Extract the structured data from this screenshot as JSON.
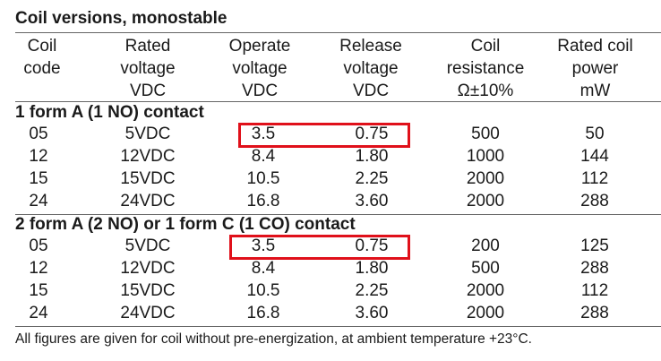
{
  "title": "Coil versions, monostable",
  "headers": [
    [
      "Coil",
      "code"
    ],
    [
      "Rated",
      "voltage",
      "VDC"
    ],
    [
      "Operate",
      "voltage",
      "VDC"
    ],
    [
      "Release",
      "voltage",
      "VDC"
    ],
    [
      "Coil",
      "resistance",
      "Ω±10%"
    ],
    [
      "Rated coil",
      "power",
      "mW"
    ]
  ],
  "sections": [
    {
      "title": "1 form A (1 NO) contact",
      "rows": [
        [
          "05",
          "5VDC",
          "3.5",
          "0.75",
          "500",
          "50"
        ],
        [
          "12",
          "12VDC",
          "8.4",
          "1.80",
          "1000",
          "144"
        ],
        [
          "15",
          "15VDC",
          "10.5",
          "2.25",
          "2000",
          "112"
        ],
        [
          "24",
          "24VDC",
          "16.8",
          "3.60",
          "2000",
          "288"
        ]
      ]
    },
    {
      "title": "2 form A (2 NO) or 1 form C (1 CO) contact",
      "rows": [
        [
          "05",
          "5VDC",
          "3.5",
          "0.75",
          "200",
          "125"
        ],
        [
          "12",
          "12VDC",
          "8.4",
          "1.80",
          "500",
          "288"
        ],
        [
          "15",
          "15VDC",
          "10.5",
          "2.25",
          "2000",
          "112"
        ],
        [
          "24",
          "24VDC",
          "16.8",
          "3.60",
          "2000",
          "288"
        ]
      ]
    }
  ],
  "footnote": "All figures are given for coil without pre-energization, at ambient temperature +23°C.",
  "highlight_color": "#e0101a"
}
